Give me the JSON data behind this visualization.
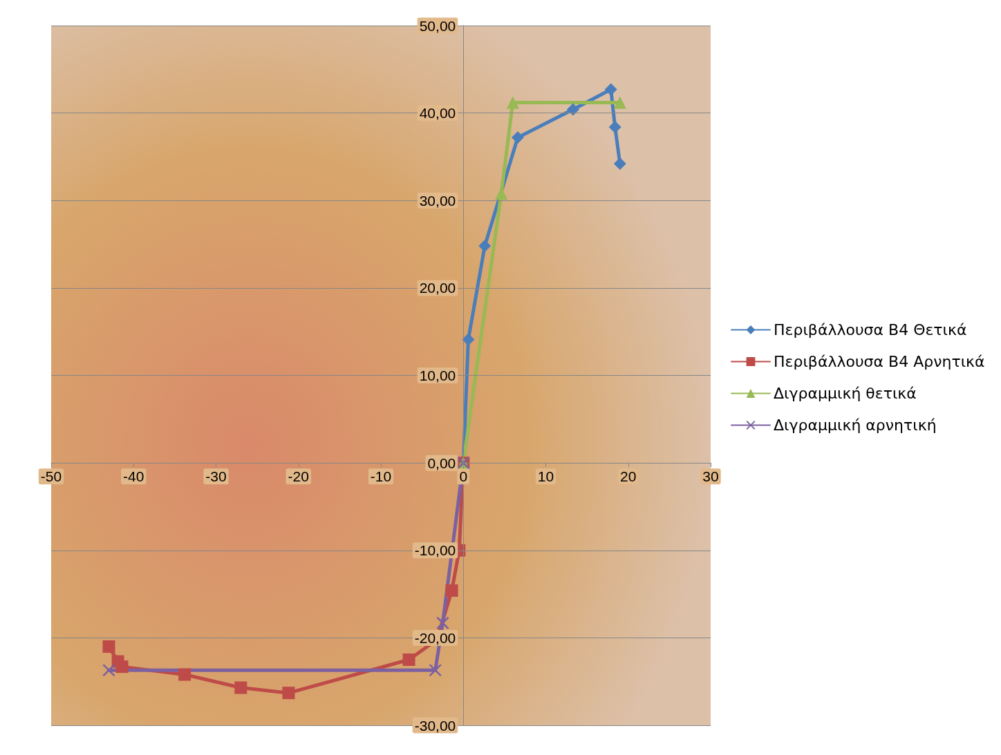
{
  "chart_data": {
    "type": "line",
    "xlim": [
      -50,
      30
    ],
    "xticks": [
      -50,
      -40,
      -30,
      -20,
      -10,
      0,
      10,
      20,
      30
    ],
    "ylim": [
      -30,
      50
    ],
    "yticks": [
      {
        "value": -30,
        "label": "-30,00"
      },
      {
        "value": -20,
        "label": "-20,00"
      },
      {
        "value": -10,
        "label": "-10,00"
      },
      {
        "value": 0,
        "label": "0,00"
      },
      {
        "value": 10,
        "label": "10,00"
      },
      {
        "value": 20,
        "label": "20,00"
      },
      {
        "value": 30,
        "label": "30,00"
      },
      {
        "value": 40,
        "label": "40,00"
      },
      {
        "value": 50,
        "label": "50,00"
      }
    ],
    "grid": "y",
    "legend": "right",
    "line_style": "solid",
    "series": [
      {
        "name": "Περιβάλλουσα B4 Θετικά",
        "color": "#4a7ebb",
        "marker": "diamond",
        "x": [
          0,
          0.6,
          2.6,
          6.6,
          13.3,
          17.9,
          18.4,
          19.0
        ],
        "values": [
          0,
          14.1,
          24.8,
          37.2,
          40.4,
          42.7,
          38.4,
          34.2
        ]
      },
      {
        "name": "Περιβάλλουσα B4 Αρνητικά",
        "color": "#be4b48",
        "marker": "square",
        "x": [
          0,
          -0.5,
          -1.4,
          -3.2,
          -6.6,
          -21.2,
          -27.0,
          -33.8,
          -41.4,
          -41.9,
          -43.0
        ],
        "values": [
          0,
          -10.0,
          -14.6,
          -20.2,
          -22.5,
          -26.3,
          -25.7,
          -24.2,
          -23.3,
          -22.7,
          -21.0
        ]
      },
      {
        "name": "Διγραμμική θετικά",
        "color": "#98b954",
        "marker": "triangle",
        "x": [
          0,
          4.6,
          6.0,
          19.0
        ],
        "values": [
          0,
          30.8,
          41.2,
          41.2
        ]
      },
      {
        "name": "Διγραμμική αρνητική",
        "color": "#7d60a0",
        "marker": "cross",
        "x": [
          0,
          -2.5,
          -3.4,
          -43.0
        ],
        "values": [
          0,
          -18.3,
          -23.7,
          -23.7
        ]
      }
    ]
  }
}
